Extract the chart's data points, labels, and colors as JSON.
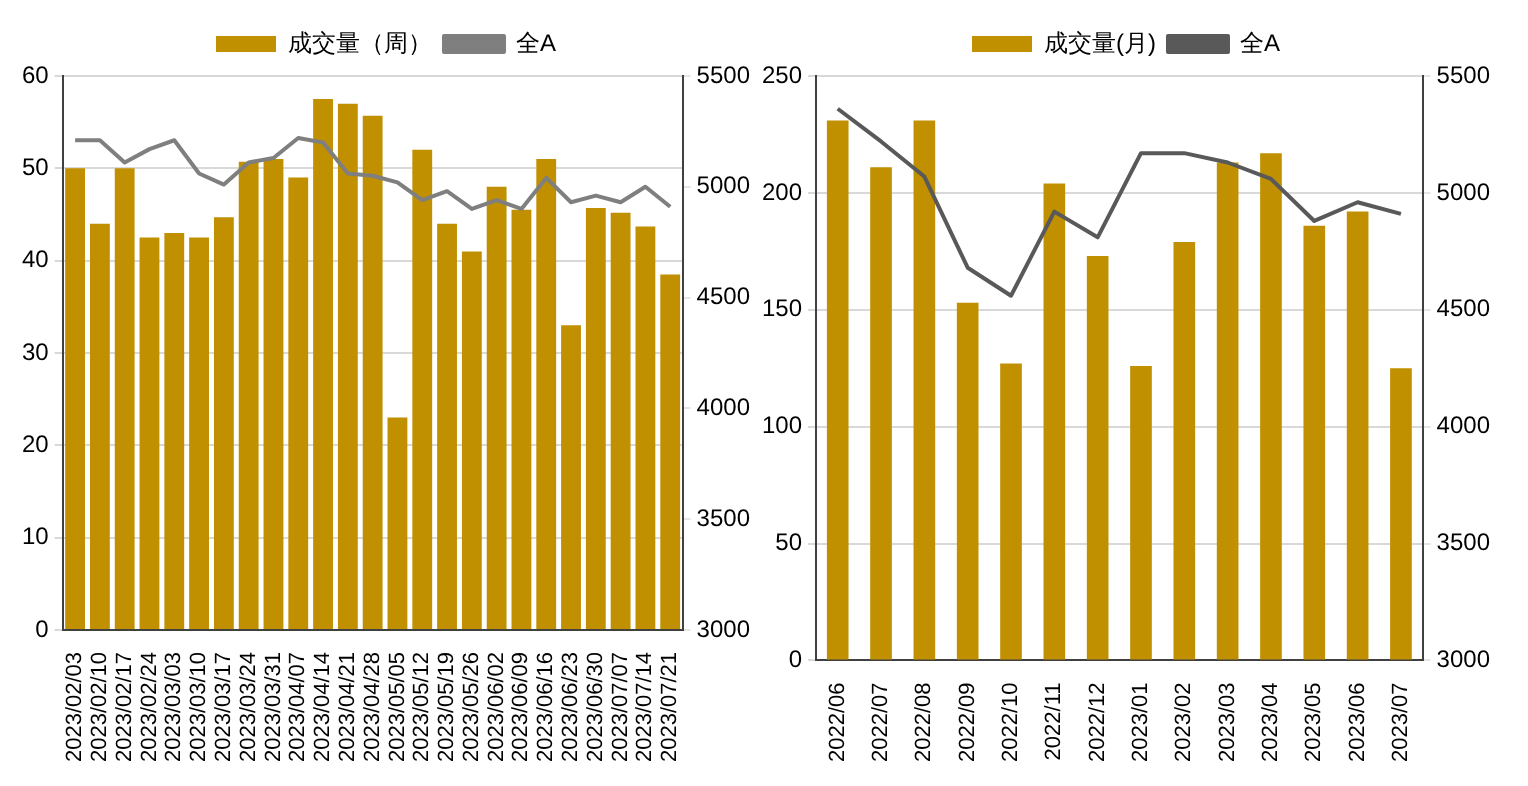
{
  "chart_data": [
    {
      "type": "bar",
      "categories": [
        "2023/02/03",
        "2023/02/10",
        "2023/02/17",
        "2023/02/24",
        "2023/03/03",
        "2023/03/10",
        "2023/03/17",
        "2023/03/24",
        "2023/03/31",
        "2023/04/07",
        "2023/04/14",
        "2023/04/21",
        "2023/04/28",
        "2023/05/05",
        "2023/05/12",
        "2023/05/19",
        "2023/05/26",
        "2023/06/02",
        "2023/06/09",
        "2023/06/16",
        "2023/06/23",
        "2023/06/30",
        "2023/07/07",
        "2023/07/14",
        "2023/07/21"
      ],
      "series": [
        {
          "name": "成交量（周）",
          "color": "#c09000",
          "values": [
            50,
            44,
            50,
            42.5,
            43,
            42.5,
            44.7,
            50.7,
            51,
            49,
            57.5,
            57,
            55.7,
            23,
            52,
            44,
            41,
            48,
            45.5,
            51,
            33,
            45.7,
            45.2,
            43.7,
            38.5
          ]
        },
        {
          "name": "全A",
          "type": "line",
          "axis": "y2",
          "color": "#7f7f7f",
          "values": [
            5210,
            5210,
            5110,
            5170,
            5210,
            5060,
            5010,
            5110,
            5130,
            5220,
            5200,
            5060,
            5050,
            5020,
            4940,
            4980,
            4900,
            4940,
            4900,
            5040,
            4930,
            4960,
            4930,
            5000,
            4910
          ]
        }
      ],
      "ylim": [
        0,
        60
      ],
      "yticks": [
        0,
        10,
        20,
        30,
        40,
        50,
        60
      ],
      "y2lim": [
        3000,
        5500
      ],
      "y2ticks": [
        3000,
        3500,
        4000,
        4500,
        5000,
        5500
      ],
      "grid": "y",
      "legend": "top",
      "marker": "none"
    },
    {
      "type": "bar",
      "categories": [
        "2022/06",
        "2022/07",
        "2022/08",
        "2022/09",
        "2022/10",
        "2022/11",
        "2022/12",
        "2023/01",
        "2023/02",
        "2023/03",
        "2023/04",
        "2023/05",
        "2023/06",
        "2023/07"
      ],
      "series": [
        {
          "name": "成交量(月)",
          "color": "#c09000",
          "values": [
            231,
            211,
            231,
            153,
            127,
            204,
            173,
            126,
            179,
            213,
            217,
            186,
            192,
            125
          ]
        },
        {
          "name": "全A",
          "type": "line",
          "axis": "y2",
          "color": "#595959",
          "values": [
            5360,
            5220,
            5070,
            4680,
            4560,
            4920,
            4810,
            5170,
            5170,
            5130,
            5060,
            4880,
            4960,
            4910
          ]
        }
      ],
      "ylim": [
        0,
        250
      ],
      "yticks": [
        0,
        50,
        100,
        150,
        200,
        250
      ],
      "y2lim": [
        3000,
        5500
      ],
      "y2ticks": [
        3000,
        3500,
        4000,
        4500,
        5000,
        5500
      ],
      "grid": "y",
      "legend": "top",
      "marker": "none"
    }
  ]
}
